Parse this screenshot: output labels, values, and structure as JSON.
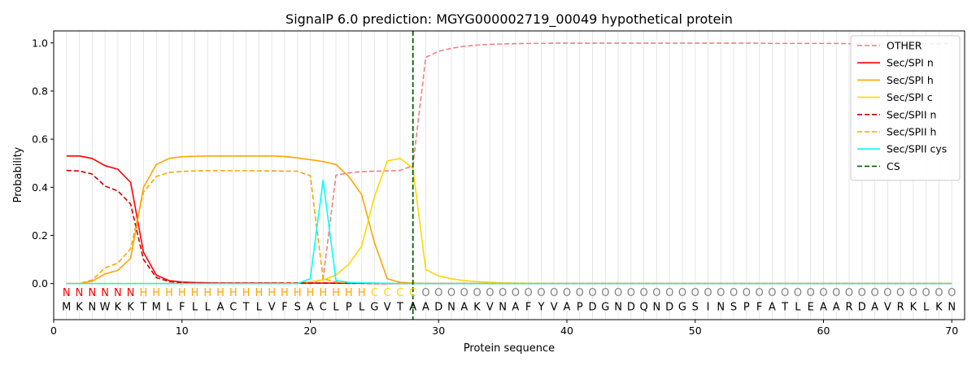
{
  "chart_data": {
    "type": "line",
    "title": "SignalP 6.0 prediction: MGYG000002719_00049 hypothetical protein",
    "xlabel": "Protein sequence",
    "ylabel": "Probability",
    "xlim": [
      0,
      71
    ],
    "ylim": [
      -0.15,
      1.05
    ],
    "x_ticks": [
      0,
      10,
      20,
      30,
      40,
      50,
      60,
      70
    ],
    "y_ticks": [
      0.0,
      0.2,
      0.4,
      0.6,
      0.8,
      1.0
    ],
    "grid": "vertical lines at each residue",
    "legend_position": "top-right",
    "sequence": [
      "M",
      "K",
      "N",
      "W",
      "K",
      "K",
      "T",
      "M",
      "L",
      "F",
      "L",
      "L",
      "A",
      "C",
      "T",
      "L",
      "V",
      "F",
      "S",
      "A",
      "C",
      "L",
      "P",
      "L",
      "G",
      "V",
      "T",
      "A",
      "A",
      "D",
      "N",
      "A",
      "K",
      "V",
      "N",
      "A",
      "F",
      "Y",
      "V",
      "A",
      "P",
      "D",
      "G",
      "N",
      "D",
      "Q",
      "N",
      "D",
      "G",
      "S",
      "I",
      "N",
      "S",
      "P",
      "F",
      "A",
      "T",
      "L",
      "E",
      "A",
      "A",
      "R",
      "D",
      "A",
      "V",
      "R",
      "K",
      "L",
      "K",
      "N"
    ],
    "regions": [
      "N",
      "N",
      "N",
      "N",
      "N",
      "N",
      "H",
      "H",
      "H",
      "H",
      "H",
      "H",
      "H",
      "H",
      "H",
      "H",
      "H",
      "H",
      "H",
      "H",
      "H",
      "H",
      "H",
      "H",
      "C",
      "C",
      "C",
      "C",
      "O",
      "O",
      "O",
      "O",
      "O",
      "O",
      "O",
      "O",
      "O",
      "O",
      "O",
      "O",
      "O",
      "O",
      "O",
      "O",
      "O",
      "O",
      "O",
      "O",
      "O",
      "O",
      "O",
      "O",
      "O",
      "O",
      "O",
      "O",
      "O",
      "O",
      "O",
      "O",
      "O",
      "O",
      "O",
      "O",
      "O",
      "O",
      "O",
      "O",
      "O",
      "O"
    ],
    "region_colors": {
      "N": "#ff0000",
      "H": "#ffa500",
      "C": "#ffd700",
      "O": "#808080"
    },
    "cs_position": 28,
    "series": [
      {
        "name": "OTHER",
        "color": "#f08080",
        "dash": "dashed",
        "values": [
          0.0,
          0.0,
          0.0,
          0.0,
          0.0,
          0.0,
          0.0,
          0.0,
          0.0,
          0.0,
          0.0,
          0.0,
          0.0,
          0.0,
          0.0,
          0.0,
          0.0,
          0.0,
          0.0,
          0.0,
          0.02,
          0.45,
          0.46,
          0.465,
          0.467,
          0.468,
          0.47,
          0.49,
          0.94,
          0.965,
          0.978,
          0.986,
          0.991,
          0.994,
          0.996,
          0.997,
          0.998,
          0.998,
          0.999,
          0.999,
          0.999,
          0.999,
          0.999,
          0.999,
          0.999,
          0.999,
          0.999,
          0.999,
          0.999,
          0.999,
          0.999,
          0.999,
          0.999,
          0.999,
          0.999,
          0.998,
          0.998,
          0.998,
          0.998,
          0.998,
          0.998,
          0.997,
          0.997,
          0.997,
          0.997,
          0.997,
          0.997,
          0.997,
          0.997,
          0.998
        ]
      },
      {
        "name": "Sec/SPI n",
        "color": "#ff0000",
        "dash": "solid",
        "values": [
          0.53,
          0.53,
          0.52,
          0.49,
          0.475,
          0.42,
          0.13,
          0.035,
          0.012,
          0.006,
          0.004,
          0.003,
          0.002,
          0.002,
          0.002,
          0.002,
          0.002,
          0.002,
          0.002,
          0.002,
          0.002,
          0.002,
          0.001,
          0.001,
          0.001,
          0.0,
          0.0,
          0.0,
          0.0,
          0.0,
          0.0,
          0.0,
          0.0,
          0.0,
          0.0,
          0.0,
          0.0,
          0.0,
          0.0,
          0.0,
          0.0,
          0.0,
          0.0,
          0.0,
          0.0,
          0.0,
          0.0,
          0.0,
          0.0,
          0.0,
          0.0,
          0.0,
          0.0,
          0.0,
          0.0,
          0.0,
          0.0,
          0.0,
          0.0,
          0.0,
          0.0,
          0.0,
          0.0,
          0.0,
          0.0,
          0.0,
          0.0,
          0.0,
          0.0,
          0.0
        ]
      },
      {
        "name": "Sec/SPI h",
        "color": "#ffa500",
        "dash": "solid",
        "values": [
          0.0,
          0.0,
          0.01,
          0.04,
          0.055,
          0.105,
          0.4,
          0.495,
          0.52,
          0.527,
          0.529,
          0.53,
          0.53,
          0.53,
          0.53,
          0.53,
          0.53,
          0.528,
          0.522,
          0.515,
          0.507,
          0.495,
          0.445,
          0.37,
          0.17,
          0.02,
          0.005,
          0.002,
          0.0,
          0.0,
          0.0,
          0.0,
          0.0,
          0.0,
          0.0,
          0.0,
          0.0,
          0.0,
          0.0,
          0.0,
          0.0,
          0.0,
          0.0,
          0.0,
          0.0,
          0.0,
          0.0,
          0.0,
          0.0,
          0.0,
          0.0,
          0.0,
          0.0,
          0.0,
          0.0,
          0.0,
          0.0,
          0.0,
          0.0,
          0.0,
          0.0,
          0.0,
          0.0,
          0.0,
          0.0,
          0.0,
          0.0,
          0.0,
          0.0,
          0.0
        ]
      },
      {
        "name": "Sec/SPI c",
        "color": "#ffd700",
        "dash": "solid",
        "values": [
          0.0,
          0.0,
          0.0,
          0.0,
          0.0,
          0.0,
          0.0,
          0.0,
          0.0,
          0.0,
          0.0,
          0.0,
          0.0,
          0.0,
          0.0,
          0.0,
          0.0,
          0.001,
          0.003,
          0.008,
          0.015,
          0.035,
          0.08,
          0.155,
          0.36,
          0.51,
          0.52,
          0.48,
          0.058,
          0.032,
          0.02,
          0.012,
          0.008,
          0.005,
          0.003,
          0.002,
          0.001,
          0.001,
          0.0,
          0.0,
          0.0,
          0.0,
          0.0,
          0.0,
          0.0,
          0.0,
          0.0,
          0.0,
          0.0,
          0.0,
          0.0,
          0.0,
          0.0,
          0.0,
          0.0,
          0.0,
          0.0,
          0.0,
          0.0,
          0.0,
          0.0,
          0.0,
          0.0,
          0.0,
          0.0,
          0.0,
          0.0,
          0.0,
          0.0,
          0.0
        ]
      },
      {
        "name": "Sec/SPII n",
        "color": "#cc0000",
        "dash": "dashed",
        "values": [
          0.47,
          0.468,
          0.455,
          0.405,
          0.385,
          0.33,
          0.1,
          0.025,
          0.008,
          0.004,
          0.003,
          0.002,
          0.002,
          0.002,
          0.002,
          0.002,
          0.002,
          0.002,
          0.002,
          0.002,
          0.002,
          0.001,
          0.001,
          0.001,
          0.0,
          0.0,
          0.0,
          0.0,
          0.0,
          0.0,
          0.0,
          0.0,
          0.0,
          0.0,
          0.0,
          0.0,
          0.0,
          0.0,
          0.0,
          0.0,
          0.0,
          0.0,
          0.0,
          0.0,
          0.0,
          0.0,
          0.0,
          0.0,
          0.0,
          0.0,
          0.0,
          0.0,
          0.0,
          0.0,
          0.0,
          0.0,
          0.0,
          0.0,
          0.0,
          0.0,
          0.0,
          0.0,
          0.0,
          0.0,
          0.0,
          0.0,
          0.0,
          0.0,
          0.0,
          0.0
        ]
      },
      {
        "name": "Sec/SPII h",
        "color": "#ffa500",
        "dash": "dashed",
        "values": [
          0.0,
          0.0,
          0.015,
          0.065,
          0.085,
          0.145,
          0.38,
          0.445,
          0.462,
          0.466,
          0.468,
          0.469,
          0.469,
          0.469,
          0.469,
          0.468,
          0.468,
          0.467,
          0.467,
          0.448,
          0.02,
          0.006,
          0.004,
          0.003,
          0.002,
          0.001,
          0.0,
          0.0,
          0.0,
          0.0,
          0.0,
          0.0,
          0.0,
          0.0,
          0.0,
          0.0,
          0.0,
          0.0,
          0.0,
          0.0,
          0.0,
          0.0,
          0.0,
          0.0,
          0.0,
          0.0,
          0.0,
          0.0,
          0.0,
          0.0,
          0.0,
          0.0,
          0.0,
          0.0,
          0.0,
          0.0,
          0.0,
          0.0,
          0.0,
          0.0,
          0.0,
          0.0,
          0.0,
          0.0,
          0.0,
          0.0,
          0.0,
          0.0,
          0.0,
          0.0
        ]
      },
      {
        "name": "Sec/SPII cys",
        "color": "#00ffff",
        "dash": "solid",
        "values": [
          0.0,
          0.0,
          0.0,
          0.0,
          0.0,
          0.0,
          0.0,
          0.0,
          0.0,
          0.0,
          0.0,
          0.0,
          0.0,
          0.0,
          0.0,
          0.0,
          0.0,
          0.0,
          0.0,
          0.02,
          0.43,
          0.012,
          0.005,
          0.003,
          0.002,
          0.001,
          0.0,
          0.0,
          0.0,
          0.0,
          0.0,
          0.0,
          0.0,
          0.0,
          0.0,
          0.0,
          0.0,
          0.0,
          0.0,
          0.0,
          0.0,
          0.0,
          0.0,
          0.0,
          0.0,
          0.0,
          0.0,
          0.0,
          0.0,
          0.0,
          0.0,
          0.0,
          0.0,
          0.0,
          0.0,
          0.0,
          0.0,
          0.0,
          0.0,
          0.0,
          0.0,
          0.0,
          0.0,
          0.0,
          0.0,
          0.0,
          0.0,
          0.0,
          0.0,
          0.0
        ]
      }
    ],
    "cs_legend": {
      "name": "CS",
      "color": "#006400",
      "dash": "dashed"
    }
  }
}
